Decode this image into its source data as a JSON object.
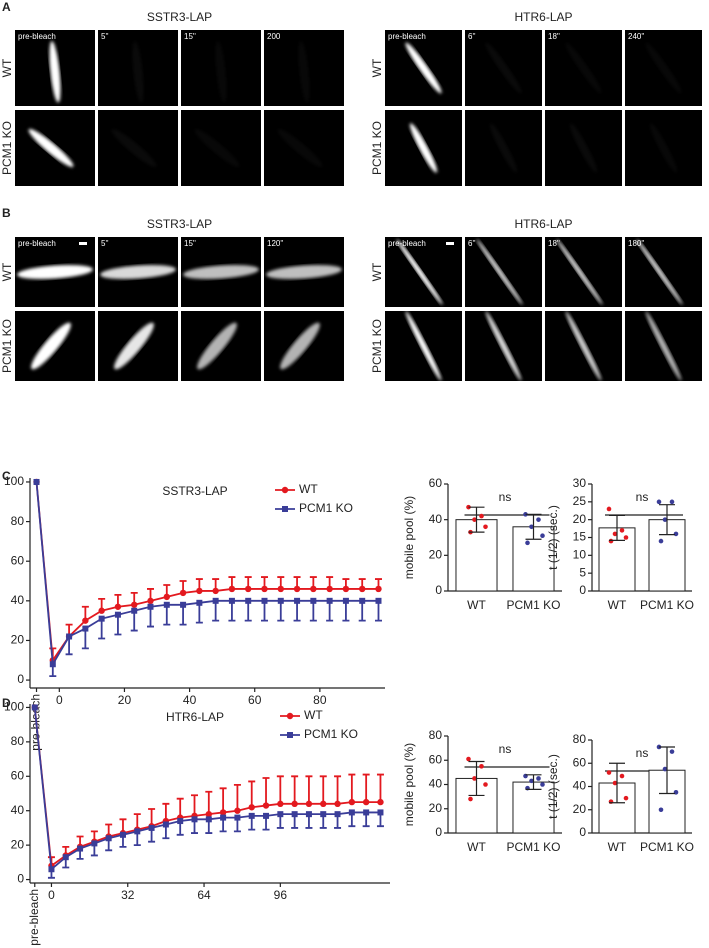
{
  "panel_letters": [
    "A",
    "B",
    "C",
    "D"
  ],
  "image_panels": [
    {
      "title": "SSTR3-LAP",
      "rows": [
        "WT",
        "PCM1 KO"
      ],
      "times": [
        "pre-bleach",
        "5''",
        "15''",
        "200"
      ]
    },
    {
      "title": "HTR6-LAP",
      "rows": [
        "WT",
        "PCM1 KO"
      ],
      "times": [
        "pre-bleach",
        "6''",
        "18''",
        "240''"
      ]
    },
    {
      "title": "SSTR3-LAP",
      "rows": [
        "WT",
        "PCM1 KO"
      ],
      "times": [
        "pre-bleach",
        "5''",
        "15''",
        "120''"
      ]
    },
    {
      "title": "HTR6-LAP",
      "rows": [
        "WT",
        "PCM1 KO"
      ],
      "times": [
        "pre-bleach",
        "6''",
        "18''",
        "180''"
      ]
    }
  ],
  "chart_data": [
    {
      "type": "line",
      "title": "SSTR3-LAP",
      "legend": "upper right",
      "x": [
        -7,
        -2,
        3,
        8,
        13,
        18,
        23,
        28,
        33,
        38,
        43,
        48,
        53,
        58,
        63,
        68,
        73,
        78,
        83,
        88,
        93,
        98
      ],
      "series": [
        {
          "name": "WT",
          "color": "#e3191f",
          "marker": "circle",
          "error_side": "up",
          "values": [
            100,
            10,
            22,
            30,
            35,
            37,
            38,
            40,
            42,
            44,
            45,
            45,
            46,
            46,
            46,
            46,
            46,
            46,
            46,
            46,
            46,
            46
          ],
          "errors": [
            0,
            6,
            6,
            7,
            6,
            6,
            6,
            6,
            6,
            6,
            6,
            6,
            6,
            6,
            6,
            6,
            6,
            6,
            6,
            5,
            5,
            5
          ]
        },
        {
          "name": "PCM1 KO",
          "color": "#3a3d98",
          "marker": "square",
          "error_side": "down",
          "values": [
            100,
            8,
            22,
            26,
            31,
            33,
            35,
            37,
            38,
            38,
            39,
            40,
            40,
            40,
            40,
            40,
            40,
            40,
            40,
            40,
            40,
            40
          ],
          "errors": [
            0,
            6,
            9,
            10,
            10,
            10,
            10,
            10,
            10,
            10,
            10,
            10,
            10,
            10,
            10,
            10,
            10,
            10,
            10,
            10,
            10,
            10
          ]
        }
      ],
      "xlim": [
        -9,
        100
      ],
      "xticks": [
        {
          "value": -7,
          "label": "pre-bleach"
        },
        0,
        20,
        40,
        60,
        80
      ],
      "ylim": [
        -4,
        102
      ],
      "yticks": [
        0,
        20,
        40,
        60,
        80,
        100
      ]
    },
    {
      "type": "bar",
      "ylabel": "mobile pool (%)",
      "annotation": "ns",
      "color": "#ffffff",
      "categories": [
        "WT",
        "PCM1 KO"
      ],
      "values": [
        40,
        36
      ],
      "errors": [
        7,
        7
      ],
      "points": [
        [
          47,
          42,
          40,
          36,
          33
        ],
        [
          43,
          40,
          36,
          31,
          27
        ]
      ],
      "point_colors": [
        "#e3191f",
        "#3a3d98"
      ],
      "ylim": [
        0,
        60
      ],
      "yticks": [
        0,
        20,
        40,
        60
      ]
    },
    {
      "type": "bar",
      "ylabel": "t (1/2) (sec.)",
      "annotation": "ns",
      "color": "#ffffff",
      "categories": [
        "WT",
        "PCM1 KO"
      ],
      "values": [
        17.7,
        20
      ],
      "errors": [
        3.5,
        4.2
      ],
      "points": [
        [
          23,
          17,
          16,
          15,
          14
        ],
        [
          25,
          25,
          20,
          16,
          14
        ]
      ],
      "point_colors": [
        "#e3191f",
        "#3a3d98"
      ],
      "ylim": [
        0,
        30
      ],
      "yticks": [
        0,
        5,
        10,
        15,
        20,
        25,
        30
      ]
    },
    {
      "type": "line",
      "title": "HTR6-LAP",
      "legend": "upper right",
      "x": [
        -7,
        0,
        6,
        12,
        18,
        24,
        30,
        36,
        42,
        48,
        54,
        60,
        66,
        72,
        78,
        84,
        90,
        96,
        102,
        108,
        114,
        120,
        126,
        132,
        138
      ],
      "series": [
        {
          "name": "WT",
          "color": "#e3191f",
          "marker": "circle",
          "error_side": "up",
          "values": [
            100,
            8,
            14,
            19,
            22,
            25,
            27,
            29,
            31,
            34,
            36,
            37,
            38,
            39,
            40,
            42,
            43,
            44,
            44,
            44,
            44,
            44,
            45,
            45,
            45
          ],
          "errors": [
            0,
            5,
            5,
            6,
            6,
            7,
            8,
            9,
            10,
            10,
            11,
            12,
            13,
            14,
            15,
            15,
            16,
            16,
            16,
            16,
            16,
            16,
            16,
            16,
            16
          ]
        },
        {
          "name": "PCM1 KO",
          "color": "#3a3d98",
          "marker": "square",
          "error_side": "down",
          "values": [
            100,
            6,
            13,
            18,
            21,
            24,
            26,
            28,
            30,
            32,
            34,
            35,
            35,
            36,
            36,
            37,
            37,
            38,
            38,
            38,
            38,
            38,
            39,
            39,
            39
          ],
          "errors": [
            0,
            5,
            6,
            6,
            7,
            7,
            7,
            8,
            8,
            8,
            8,
            8,
            8,
            8,
            8,
            8,
            8,
            8,
            8,
            8,
            8,
            8,
            8,
            8,
            8
          ]
        }
      ],
      "xlim": [
        -9,
        142
      ],
      "xticks": [
        {
          "value": -7,
          "label": "pre-bleach"
        },
        0,
        32,
        64,
        96
      ],
      "ylim": [
        -2,
        102
      ],
      "yticks": [
        0,
        20,
        40,
        60,
        80,
        100
      ]
    },
    {
      "type": "bar",
      "ylabel": "mobile pool (%)",
      "annotation": "ns",
      "color": "#ffffff",
      "categories": [
        "WT",
        "PCM1 KO"
      ],
      "values": [
        45,
        42
      ],
      "errors": [
        14,
        6
      ],
      "points": [
        [
          61,
          55,
          45,
          40,
          28
        ],
        [
          47,
          45,
          43,
          40,
          37
        ]
      ],
      "point_colors": [
        "#e3191f",
        "#3a3d98"
      ],
      "ylim": [
        0,
        80
      ],
      "yticks": [
        0,
        20,
        40,
        60,
        80
      ]
    },
    {
      "type": "bar",
      "ylabel": "t (1/2) (sec.)",
      "annotation": "ns",
      "color": "#ffffff",
      "categories": [
        "WT",
        "PCM1 KO"
      ],
      "values": [
        43,
        54
      ],
      "errors": [
        17,
        20
      ],
      "points": [
        [
          52,
          49,
          43,
          30,
          27
        ],
        [
          74,
          70,
          55,
          35,
          20
        ]
      ],
      "point_colors": [
        "#e3191f",
        "#3a3d98"
      ],
      "ylim": [
        0,
        80
      ],
      "yticks": [
        0,
        20,
        40,
        60,
        80
      ]
    }
  ]
}
